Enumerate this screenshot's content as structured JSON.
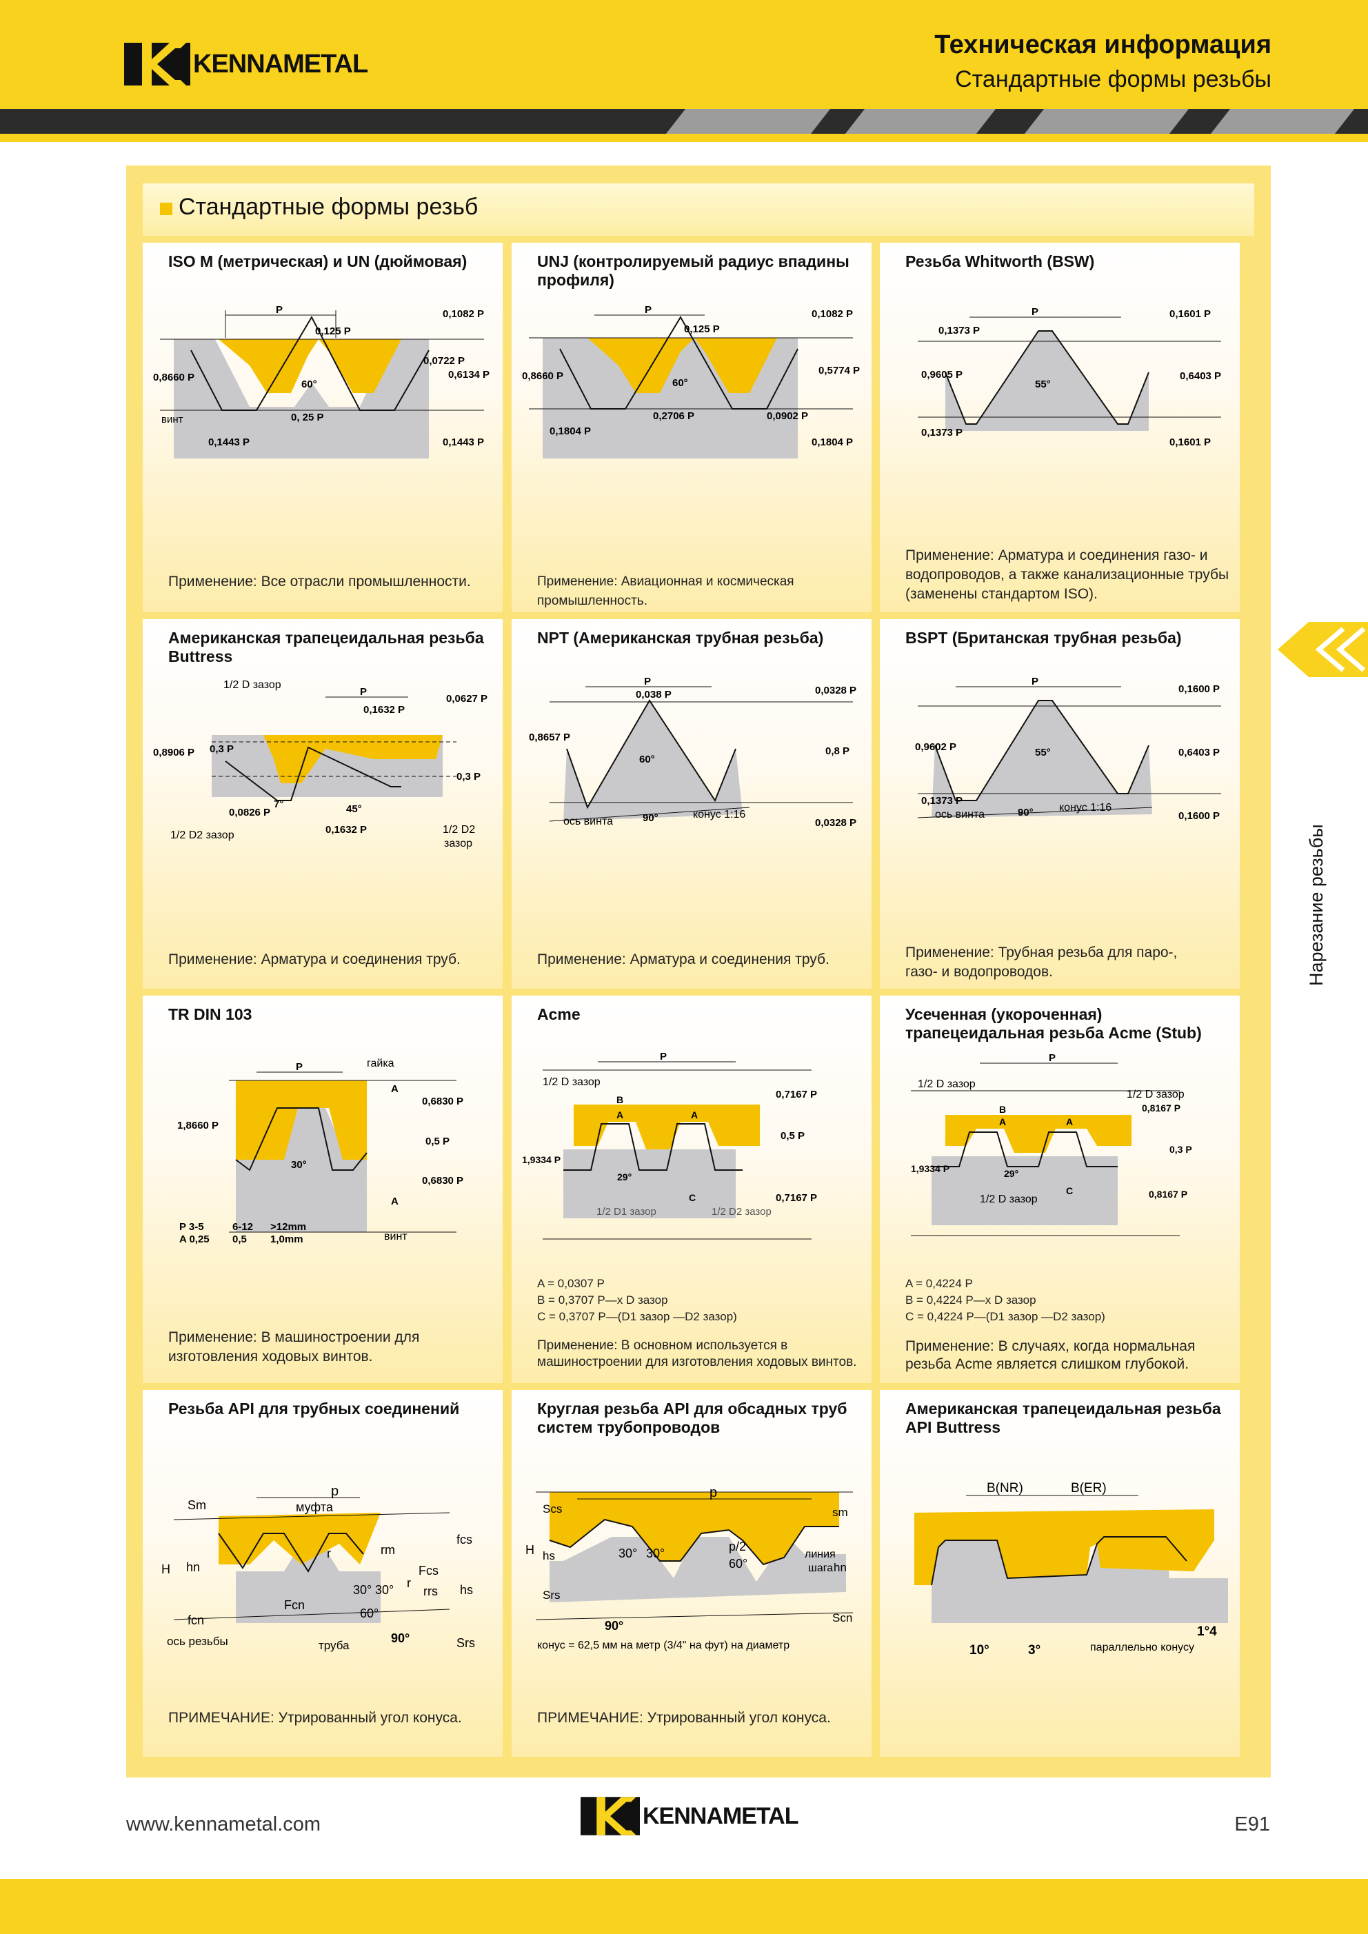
{
  "brand": {
    "name": "KENNAMETAL"
  },
  "header": {
    "title": "Техническая информация",
    "subtitle": "Стандартные формы резьбы"
  },
  "section": {
    "title": "Стандартные формы резьб"
  },
  "side_tab": {
    "label": "Нарезание резьбы",
    "icon": "chevron-left-icon"
  },
  "colors": {
    "yellow": "#f8d21c",
    "nut": "#f5c000",
    "bolt": "#c9c9cc",
    "dark": "#2c2c2c"
  },
  "cards": [
    {
      "title": "ISO M (метрическая) и UN (дюймовая)",
      "labels": [
        "P",
        "0,125 P",
        "0,1082 P",
        "0,0722 P",
        "0,6134 P",
        "0,8660 P",
        "60°",
        "винт",
        "0, 25 P",
        "0,1443 P",
        "0,1443 P"
      ],
      "note": "Применение: Все отрасли промышленности."
    },
    {
      "title": "UNJ (контролируемый радиус впадины профиля)",
      "labels": [
        "P",
        "0,125 P",
        "0,1082 P",
        "0,5774 P",
        "0,8660 P",
        "60°",
        "0,2706 P",
        "0,0902 P",
        "0,1804 P",
        "0,1804 P"
      ],
      "note": "Применение: Авиационная и космическая промышленность."
    },
    {
      "title": "Резьба Whitworth (BSW)",
      "labels": [
        "P",
        "0,1601 P",
        "0,1373 P",
        "0,9605 P",
        "0,6403 P",
        "55°",
        "0,1373 P",
        "0,1601 P"
      ],
      "note": "Применение: Арматура и соединения газо- и водопроводов, а также канализационные трубы (заменены стандартом ISO)."
    },
    {
      "title": "Американская трапецеидальная резьба Buttress",
      "labels": [
        "1/2 D зазор",
        "P",
        "0,1632 P",
        "0,0627 P",
        "0,8906 P",
        "0,3 P",
        "0,3 P",
        "7°",
        "45°",
        "0,0826 P",
        "1/2 D2 зазор",
        "0,1632 P",
        "1/2 D2",
        "зазор"
      ],
      "note": "Применение: Арматура и соединения труб."
    },
    {
      "title": "NPT (Американская трубная резьба)",
      "labels": [
        "P",
        "0,038 P",
        "0,0328 P",
        "0,8657 P",
        "60°",
        "0,8 P",
        "конус 1:16",
        "ось винта",
        "90°",
        "0,0328 P"
      ],
      "note": "Применение: Арматура и соединения труб."
    },
    {
      "title": "BSPT (Британская трубная резьба)",
      "labels": [
        "P",
        "0,1600 P",
        "0,9602 P",
        "55°",
        "0,6403 P",
        "0,1373 P",
        "конус 1:16",
        "ось винта",
        "90°",
        "0,1600 P"
      ],
      "note": "Применение: Трубная резьба для паро-, газо- и водопроводов."
    },
    {
      "title": "TR DIN 103",
      "labels": [
        "P",
        "гайка",
        "A",
        "0,6830 P",
        "1,8660 P",
        "0,5 P",
        "30°",
        "0,6830 P",
        "A",
        "P 3-5",
        "6-12",
        ">12mm",
        "A 0,25",
        "0,5",
        "1,0mm",
        "винт"
      ],
      "note": "Применение: В машиностроении для изготовления ходовых винтов."
    },
    {
      "title": "Acme",
      "labels": [
        "P",
        "1/2 D зазор",
        "B",
        "A",
        "A",
        "0,7167 P",
        "0,5 P",
        "1,9334 P",
        "29°",
        "C",
        "0,7167 P",
        "1/2 D1 зазор",
        "1/2 D2 зазор"
      ],
      "formulas": [
        "A = 0,0307 P",
        "B = 0,3707 P—x D зазор",
        "C = 0,3707 P—(D1 зазор —D2 зазор)"
      ],
      "note": "Применение: В основном используется в машиностроении для изготовления ходовых винтов."
    },
    {
      "title": "Усеченная (укороченная) трапецеидальная резьба Acme (Stub)",
      "labels": [
        "P",
        "1/2 D зазор",
        "1/2 D зазор",
        "B",
        "A",
        "A",
        "0,8167 P",
        "0,3 P",
        "1,9334 P",
        "29°",
        "C",
        "0,8167 P",
        "1/2 D зазор"
      ],
      "formulas": [
        "A = 0,4224 P",
        "B = 0,4224 P—x D зазор",
        "C = 0,4224 P—(D1 зазор —D2 зазор)"
      ],
      "note": "Применение: В случаях, когда нормальная резьба Acme является слишком глубокой."
    },
    {
      "title": "Резьба API для трубных соединений",
      "labels": [
        "p",
        "Sm",
        "муфта",
        "fcs",
        "H",
        "hn",
        "r",
        "rm",
        "Fcs",
        "30°",
        "30°",
        "r",
        "rrs",
        "hs",
        "Fcn",
        "60°",
        "fcn",
        "ось резьбы",
        "труба",
        "90°",
        "Srs"
      ],
      "note": "ПРИМЕЧАНИЕ: Утрированный угол конуса."
    },
    {
      "title": "Круглая резьба API для обсадных труб систем трубопроводов",
      "labels": [
        "p",
        "Scs",
        "sm",
        "H",
        "hs",
        "30°",
        "30°",
        "p/2",
        "линия",
        "шага",
        "hn",
        "60°",
        "Srs",
        "Scn",
        "90°",
        "конус = 62,5 мм на метр (3/4\" на фут) на диаметр"
      ],
      "note": "ПРИМЕЧАНИЕ: Утрированный угол конуса."
    },
    {
      "title": "Американская трапецеидальная резьба API Buttress",
      "labels": [
        "B(NR)",
        "B(ER)",
        "10°",
        "3°",
        "1°4",
        "параллельно конусу"
      ],
      "note": ""
    }
  ],
  "footer": {
    "url": "www.kennametal.com",
    "page": "E91"
  }
}
